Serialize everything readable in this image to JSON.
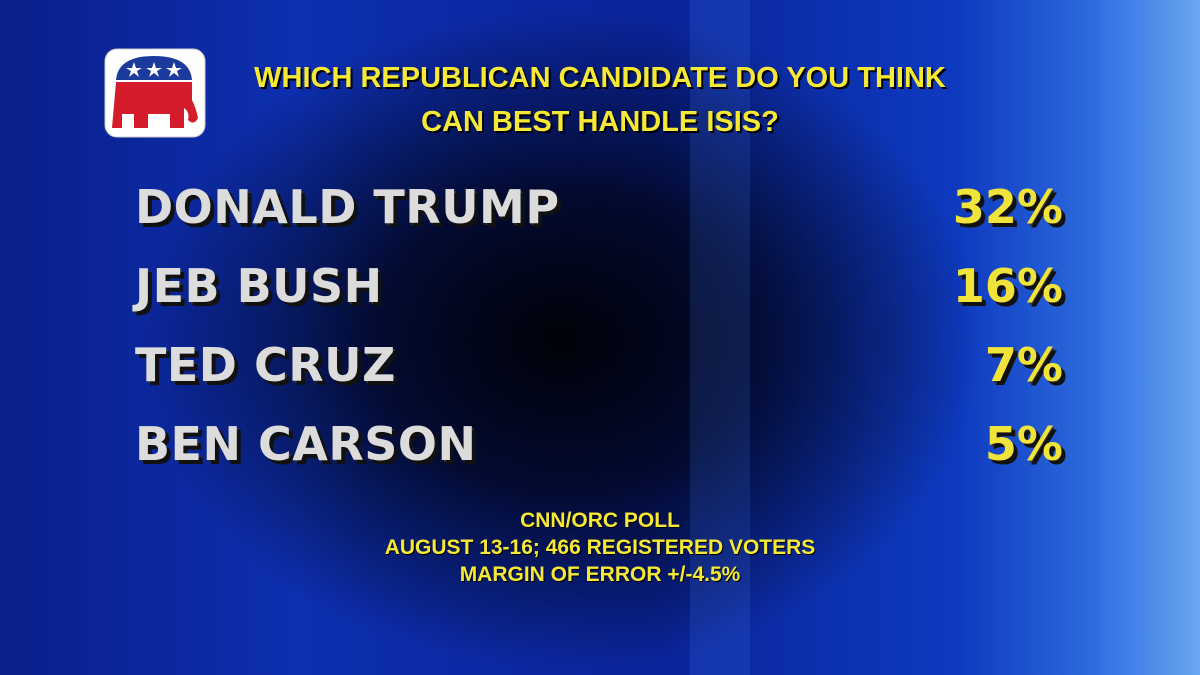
{
  "header": {
    "title_lines": [
      "WHICH REPUBLICAN CANDIDATE DO YOU THINK",
      "CAN BEST HANDLE ISIS?"
    ]
  },
  "rows": [
    {
      "name": "DONALD TRUMP",
      "value": "32%"
    },
    {
      "name": "JEB BUSH",
      "value": "16%"
    },
    {
      "name": "TED CRUZ",
      "value": "7%"
    },
    {
      "name": "BEN CARSON",
      "value": "5%"
    }
  ],
  "footer": {
    "lines": [
      "CNN/ORC POLL",
      "AUGUST 13-16; 466 REGISTERED VOTERS",
      "MARGIN OF ERROR +/-4.5%"
    ]
  }
}
